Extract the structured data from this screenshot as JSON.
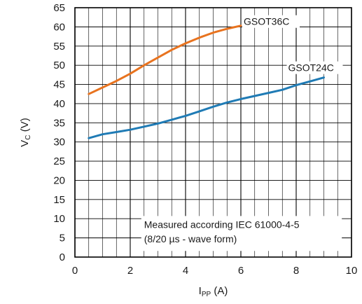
{
  "chart_data": {
    "type": "line",
    "xlabel": {
      "main": "I",
      "sub": "PP",
      "unit": " (A)"
    },
    "ylabel": {
      "main": "V",
      "sub": "C",
      "unit": " (V)"
    },
    "xlim": [
      0,
      10
    ],
    "ylim": [
      0,
      65
    ],
    "x_ticks": [
      "0",
      "2",
      "4",
      "6",
      "8",
      "10"
    ],
    "y_ticks": [
      "0",
      "5",
      "10",
      "15",
      "20",
      "25",
      "30",
      "35",
      "40",
      "45",
      "50",
      "55",
      "60",
      "65"
    ],
    "grid": true,
    "annotation": [
      "Measured according IEC 61000-4-5",
      "(8/20 µs - wave form)"
    ],
    "series": [
      {
        "name": "GSOT36C",
        "color": "#e8731f",
        "x": [
          0.5,
          1,
          1.5,
          2,
          2.5,
          3,
          3.5,
          4,
          4.5,
          5,
          5.5,
          6
        ],
        "y": [
          42.5,
          44.2,
          45.9,
          47.8,
          50.0,
          52.0,
          54.0,
          55.7,
          57.2,
          58.5,
          59.5,
          60.3
        ]
      },
      {
        "name": "GSOT24C",
        "color": "#1f7bb5",
        "x": [
          0.5,
          1,
          1.5,
          2,
          2.5,
          3,
          3.5,
          4,
          4.5,
          5,
          5.5,
          6,
          6.5,
          7,
          7.5,
          8,
          8.5,
          9
        ],
        "y": [
          31.0,
          32.0,
          32.6,
          33.2,
          34.0,
          34.8,
          35.8,
          36.8,
          38.0,
          39.2,
          40.3,
          41.2,
          42.0,
          42.8,
          43.6,
          44.8,
          45.8,
          46.8
        ]
      }
    ]
  }
}
